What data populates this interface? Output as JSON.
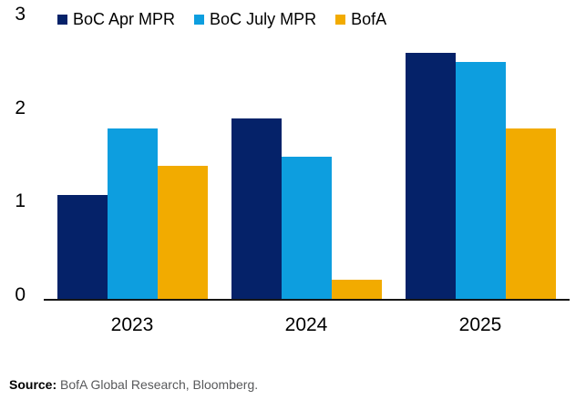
{
  "chart_data": {
    "type": "bar",
    "title": "",
    "xlabel": "",
    "ylabel": "",
    "categories": [
      "2023",
      "2024",
      "2025"
    ],
    "series": [
      {
        "name": "BoC Apr MPR",
        "color": "#052269",
        "values": [
          1.1,
          1.9,
          2.6
        ]
      },
      {
        "name": "BoC July MPR",
        "color": "#0d9edf",
        "values": [
          1.8,
          1.5,
          2.5
        ]
      },
      {
        "name": "BofA",
        "color": "#f2ab00",
        "values": [
          1.4,
          0.2,
          1.8
        ]
      }
    ],
    "ylim": [
      0,
      3
    ],
    "yticks": [
      0,
      1,
      2,
      3
    ],
    "grid": false,
    "legend_position": "top"
  },
  "source": {
    "label": "Source:",
    "text": "BofA Global Research, Bloomberg."
  },
  "colors": {
    "axis_line": "#161616",
    "tick_text": "#000000",
    "source_text": "#58595b",
    "background": "#ffffff"
  }
}
